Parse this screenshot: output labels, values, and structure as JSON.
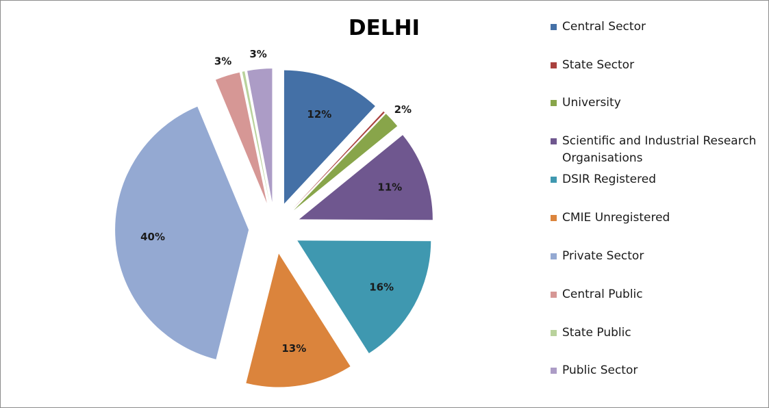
{
  "chart_data": {
    "type": "pie",
    "title": "DELHI",
    "legend_position": "right",
    "slices": [
      {
        "name": "Central Sector",
        "value": 12,
        "label": "12%",
        "color": "#4470a6"
      },
      {
        "name": "State Sector",
        "value": 0.2,
        "label": "",
        "color": "#a9413e"
      },
      {
        "name": "University",
        "value": 2,
        "label": "2%",
        "color": "#88a54a"
      },
      {
        "name": "Scientific and Industrial Research Organisations",
        "value": 11,
        "label": "11%",
        "color": "#6f578f"
      },
      {
        "name": "DSIR Registered",
        "value": 16,
        "label": "16%",
        "color": "#3f98b0"
      },
      {
        "name": "CMIE Unregistered",
        "value": 13,
        "label": "13%",
        "color": "#db843c"
      },
      {
        "name": "Private Sector",
        "value": 40,
        "label": "40%",
        "color": "#94a9d2"
      },
      {
        "name": "Central Public",
        "value": 3,
        "label": "3%",
        "color": "#d69795"
      },
      {
        "name": "State Public",
        "value": 0.3,
        "label": "",
        "color": "#b9d29c"
      },
      {
        "name": "Public Sector",
        "value": 3,
        "label": "3%",
        "color": "#ac9cc6"
      }
    ]
  }
}
